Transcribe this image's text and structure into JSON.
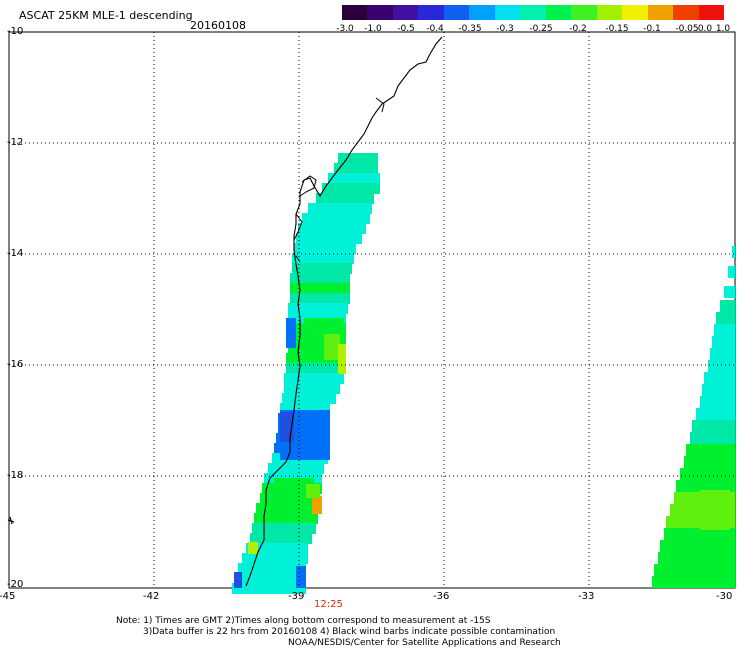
{
  "title": "ASCAT 25KM MLE-1 descending",
  "date": "20160108",
  "colorbar": {
    "labels": [
      "-3.0",
      "-1.0",
      "-0.5",
      "-0.4",
      "-0.35",
      "-0.3",
      "-0.25",
      "-0.2",
      "-0.15",
      "-0.1",
      "-0.05",
      "0.0",
      "1.0"
    ],
    "colors": [
      "#2a003a",
      "#3c0070",
      "#4010a0",
      "#2828d8",
      "#1060f0",
      "#00a0ff",
      "#00e0f0",
      "#00f0b0",
      "#00f050",
      "#40f020",
      "#a0f000",
      "#f0f000",
      "#f0a000",
      "#f04000",
      "#f01010"
    ]
  },
  "lat_labels": [
    "-10",
    "-12",
    "-14",
    "-16",
    "-18",
    "-20"
  ],
  "lon_labels": [
    "-45",
    "-42",
    "-39",
    "-36",
    "-33",
    "-30"
  ],
  "pass_time": "12:25",
  "notes": [
    "Note: 1) Times are GMT 2)Times along bottom correspond to measurement at -15S",
    "3)Data buffer is 22 hrs from 20160108 4) Black wind barbs indicate possible contamination",
    "NOAA/NESDIS/Center for Satellite Applications and Research"
  ],
  "swath_colors": {
    "cyan": "#00f0d8",
    "teal": "#00e8a8",
    "green": "#00f030",
    "lime": "#60f010",
    "yellowgreen": "#b0f000",
    "blue": "#0070f8",
    "deepblue": "#2050e0",
    "orange": "#f0a000"
  }
}
